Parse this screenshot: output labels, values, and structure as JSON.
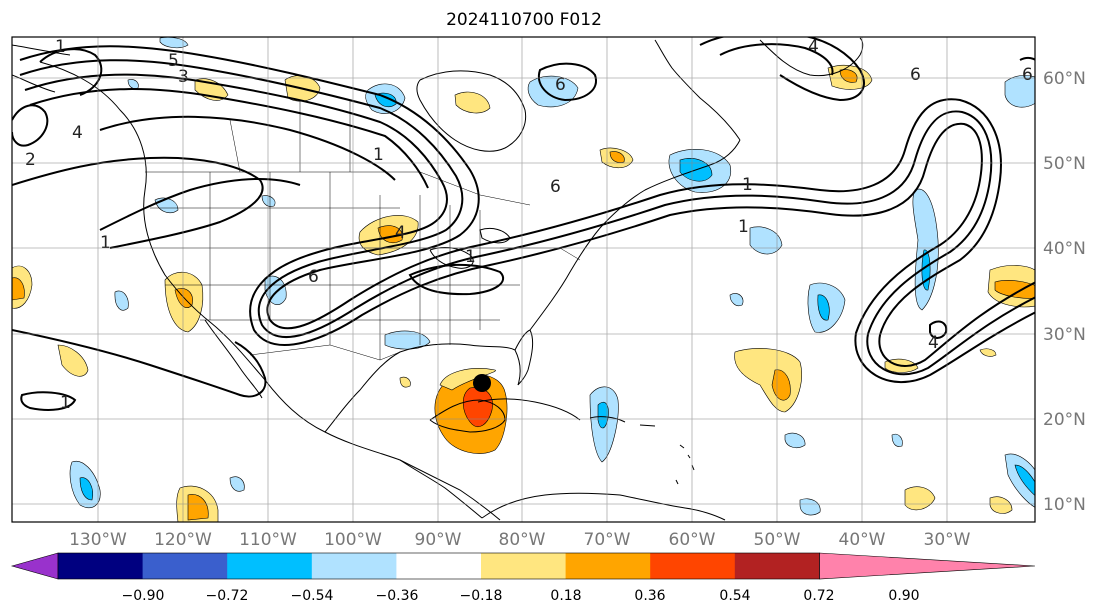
{
  "title": "2024110700 F012",
  "map": {
    "lon_labels": [
      "130°W",
      "120°W",
      "110°W",
      "100°W",
      "90°W",
      "80°W",
      "70°W",
      "60°W",
      "50°W",
      "40°W",
      "30°W"
    ],
    "lat_labels": [
      "60°N",
      "50°N",
      "40°N",
      "30°N",
      "20°N",
      "10°N"
    ],
    "contour_labels": [
      "1",
      "1",
      "1",
      "1",
      "1",
      "2",
      "3",
      "4",
      "4",
      "4",
      "5",
      "6",
      "6",
      "6",
      "6",
      "6",
      "1",
      "1",
      "4"
    ],
    "storm_marker": "storm-center"
  },
  "colorbar": {
    "tick_labels": [
      "−0.90",
      "−0.72",
      "−0.54",
      "−0.36",
      "−0.18",
      "0.18",
      "0.36",
      "0.54",
      "0.72",
      "0.90"
    ],
    "colors": [
      "#9932cc",
      "#000080",
      "#3a5fcd",
      "#00bfff",
      "#b0e2ff",
      "#ffffff",
      "#ffe680",
      "#ffa500",
      "#ff4500",
      "#b22222",
      "#ff82ab"
    ]
  }
}
